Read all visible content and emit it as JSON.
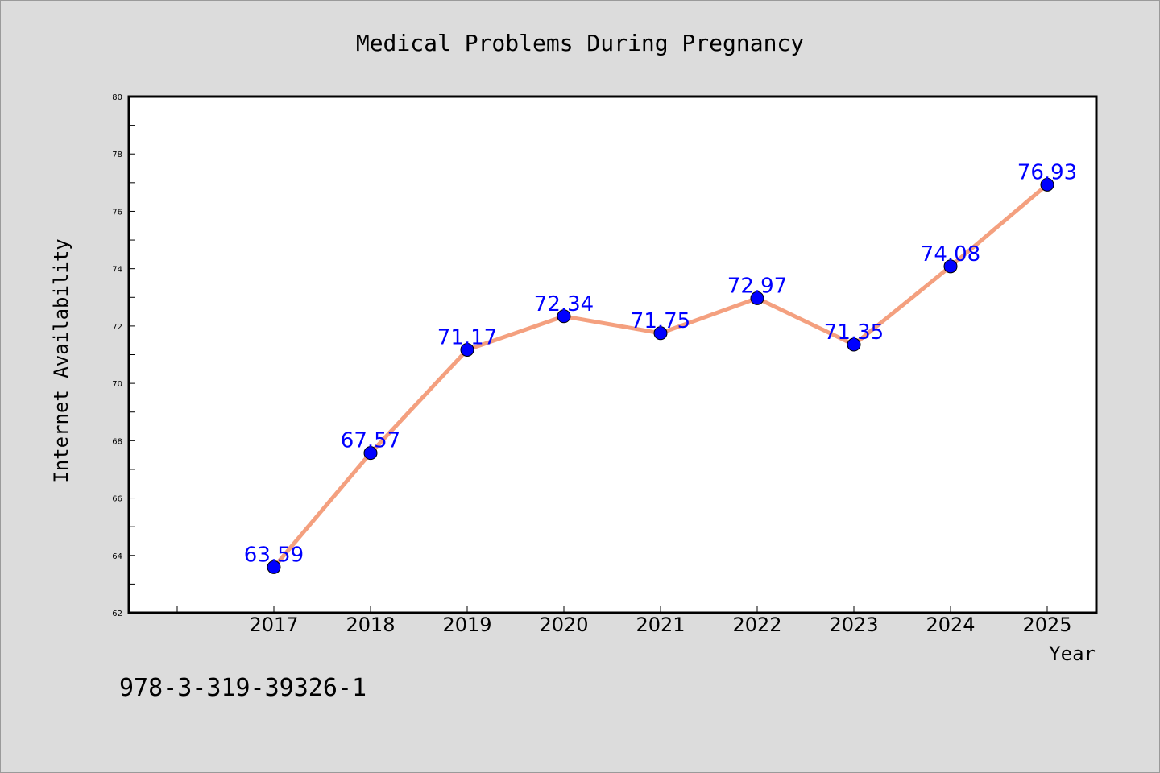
{
  "chart_data": {
    "type": "line",
    "title": "Medical Problems During Pregnancy",
    "xlabel": "Year",
    "ylabel": "Internet Availability",
    "categories": [
      "2017",
      "2018",
      "2019",
      "2020",
      "2021",
      "2022",
      "2023",
      "2024",
      "2025"
    ],
    "series": [
      {
        "values": [
          63.59,
          67.57,
          71.17,
          72.34,
          71.75,
          72.97,
          71.35,
          74.08,
          76.93
        ],
        "line_color": "#f4a07f",
        "marker_color": "#0000ff"
      }
    ],
    "data_labels": [
      "63.59",
      "67.57",
      "71.17",
      "72.34",
      "71.75",
      "72.97",
      "71.35",
      "74.08",
      "76.93"
    ],
    "ylim": [
      62,
      80
    ],
    "yticks": [
      62,
      64,
      66,
      68,
      70,
      72,
      74,
      76,
      78,
      80
    ],
    "ytick_labels": [
      "62",
      "64",
      "66",
      "68",
      "70",
      "72",
      "74",
      "76",
      "78",
      "80"
    ],
    "grid": false,
    "legend": "none",
    "annotation": "978-3-319-39326-1",
    "colors": {
      "background": "#dcdcdc",
      "plot_background": "#ffffff",
      "data_label": "#0000ff"
    }
  }
}
